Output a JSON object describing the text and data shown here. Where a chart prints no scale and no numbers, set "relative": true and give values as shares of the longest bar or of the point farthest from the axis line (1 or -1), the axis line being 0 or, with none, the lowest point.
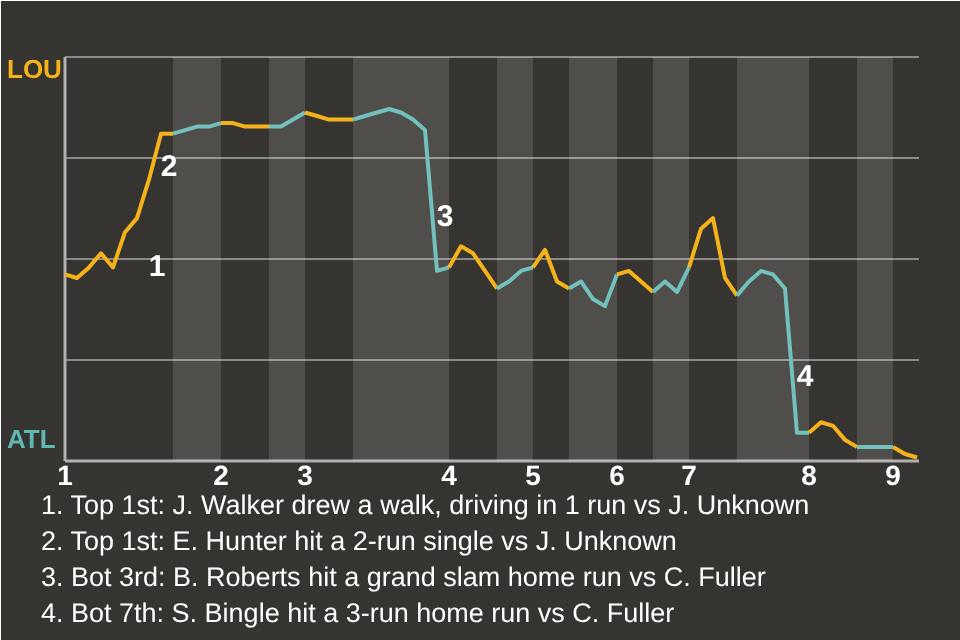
{
  "chart_data": {
    "type": "line",
    "relative": true,
    "grid": "y",
    "marker": "none",
    "line_style": "solid",
    "categories": [
      "1",
      null,
      null,
      null,
      null,
      null,
      null,
      null,
      null,
      null,
      null,
      null,
      null,
      "2",
      null,
      null,
      null,
      null,
      null,
      null,
      "3",
      null,
      null,
      null,
      null,
      null,
      null,
      null,
      null,
      null,
      null,
      null,
      "4",
      null,
      null,
      null,
      null,
      null,
      null,
      "5",
      null,
      null,
      null,
      null,
      null,
      null,
      "6",
      null,
      null,
      null,
      null,
      null,
      "7",
      null,
      null,
      null,
      null,
      null,
      null,
      null,
      null,
      null,
      "8",
      null,
      null,
      null,
      null,
      null,
      null,
      "9",
      null,
      null
    ],
    "series": [
      {
        "name": "LOU",
        "color": "#f5b21b",
        "values": [
          0.53,
          0.52,
          0.55,
          0.59,
          0.55,
          0.65,
          0.69,
          0.8,
          0.93,
          0.93,
          null,
          null,
          null,
          null,
          null,
          null,
          null,
          null,
          null,
          null,
          null,
          null,
          null,
          null,
          null,
          null,
          null,
          null,
          null,
          null,
          null,
          null,
          null,
          null,
          null,
          null,
          null,
          null,
          null,
          null,
          null,
          null,
          null,
          null,
          null,
          null,
          null,
          null,
          null,
          null,
          null,
          null,
          null,
          null,
          null,
          null,
          null,
          null,
          null,
          null,
          null,
          null,
          null,
          null,
          null,
          null,
          null,
          null,
          null,
          null,
          null,
          null
        ]
      },
      {
        "name": "ATL",
        "color": "#5fb8b4",
        "values": [
          null,
          null,
          null,
          null,
          null,
          null,
          null,
          null,
          null,
          0.93,
          0.94,
          0.95,
          0.95,
          0.96,
          null,
          null,
          null,
          null,
          null,
          null,
          null,
          null,
          null,
          null,
          null,
          null,
          null,
          null,
          null,
          null,
          null,
          null,
          null,
          null,
          null,
          null,
          null,
          null,
          null,
          null,
          null,
          null,
          null,
          null,
          null,
          null,
          null,
          null,
          null,
          null,
          null,
          null,
          null,
          null,
          null,
          null,
          null,
          null,
          null,
          null,
          null,
          null,
          null,
          null,
          null,
          null,
          null,
          null,
          null,
          null,
          null,
          null
        ]
      },
      {
        "color": "#f5b21b",
        "values": [
          null,
          null,
          null,
          null,
          null,
          null,
          null,
          null,
          null,
          null,
          null,
          null,
          null,
          0.96,
          0.96,
          0.95,
          0.95,
          0.95,
          null,
          null,
          null,
          null,
          null,
          null,
          null,
          null,
          null,
          null,
          null,
          null,
          null,
          null,
          null,
          null,
          null,
          null,
          null,
          null,
          null,
          null,
          null,
          null,
          null,
          null,
          null,
          null,
          null,
          null,
          null,
          null,
          null,
          null,
          null,
          null,
          null,
          null,
          null,
          null,
          null,
          null,
          null,
          null,
          null,
          null,
          null,
          null,
          null,
          null,
          null,
          null,
          null,
          null
        ]
      },
      {
        "color": "#5fb8b4",
        "values": [
          null,
          null,
          null,
          null,
          null,
          null,
          null,
          null,
          null,
          null,
          null,
          null,
          null,
          null,
          null,
          null,
          null,
          0.95,
          0.95,
          0.97,
          0.99,
          null,
          null,
          null,
          null,
          null,
          null,
          null,
          null,
          null,
          null,
          null,
          null,
          null,
          null,
          null,
          null,
          null,
          null,
          null,
          null,
          null,
          null,
          null,
          null,
          null,
          null,
          null,
          null,
          null,
          null,
          null,
          null,
          null,
          null,
          null,
          null,
          null,
          null,
          null,
          null,
          null,
          null,
          null,
          null,
          null,
          null,
          null,
          null,
          null,
          null,
          null
        ]
      },
      {
        "color": "#f5b21b",
        "values": [
          null,
          null,
          null,
          null,
          null,
          null,
          null,
          null,
          null,
          null,
          null,
          null,
          null,
          null,
          null,
          null,
          null,
          null,
          null,
          null,
          0.99,
          0.98,
          0.97,
          0.97,
          0.97,
          null,
          null,
          null,
          null,
          null,
          null,
          null,
          null,
          null,
          null,
          null,
          null,
          null,
          null,
          null,
          null,
          null,
          null,
          null,
          null,
          null,
          null,
          null,
          null,
          null,
          null,
          null,
          null,
          null,
          null,
          null,
          null,
          null,
          null,
          null,
          null,
          null,
          null,
          null,
          null,
          null,
          null,
          null,
          null,
          null,
          null,
          null
        ]
      },
      {
        "color": "#5fb8b4",
        "values": [
          null,
          null,
          null,
          null,
          null,
          null,
          null,
          null,
          null,
          null,
          null,
          null,
          null,
          null,
          null,
          null,
          null,
          null,
          null,
          null,
          null,
          null,
          null,
          null,
          0.97,
          0.98,
          0.99,
          1.0,
          0.99,
          0.97,
          0.94,
          0.54,
          0.55,
          null,
          null,
          null,
          null,
          null,
          null,
          null,
          null,
          null,
          null,
          null,
          null,
          null,
          null,
          null,
          null,
          null,
          null,
          null,
          null,
          null,
          null,
          null,
          null,
          null,
          null,
          null,
          null,
          null,
          null,
          null,
          null,
          null,
          null,
          null,
          null,
          null,
          null,
          null
        ]
      },
      {
        "color": "#f5b21b",
        "values": [
          null,
          null,
          null,
          null,
          null,
          null,
          null,
          null,
          null,
          null,
          null,
          null,
          null,
          null,
          null,
          null,
          null,
          null,
          null,
          null,
          null,
          null,
          null,
          null,
          null,
          null,
          null,
          null,
          null,
          null,
          null,
          null,
          0.55,
          0.61,
          0.59,
          0.54,
          0.49,
          null,
          null,
          null,
          null,
          null,
          null,
          null,
          null,
          null,
          null,
          null,
          null,
          null,
          null,
          null,
          null,
          null,
          null,
          null,
          null,
          null,
          null,
          null,
          null,
          null,
          null,
          null,
          null,
          null,
          null,
          null,
          null,
          null,
          null,
          null
        ]
      },
      {
        "color": "#5fb8b4",
        "values": [
          null,
          null,
          null,
          null,
          null,
          null,
          null,
          null,
          null,
          null,
          null,
          null,
          null,
          null,
          null,
          null,
          null,
          null,
          null,
          null,
          null,
          null,
          null,
          null,
          null,
          null,
          null,
          null,
          null,
          null,
          null,
          null,
          null,
          null,
          null,
          null,
          0.49,
          0.51,
          0.54,
          0.55,
          null,
          null,
          null,
          null,
          null,
          null,
          null,
          null,
          null,
          null,
          null,
          null,
          null,
          null,
          null,
          null,
          null,
          null,
          null,
          null,
          null,
          null,
          null,
          null,
          null,
          null,
          null,
          null,
          null,
          null,
          null,
          null
        ]
      },
      {
        "color": "#f5b21b",
        "values": [
          null,
          null,
          null,
          null,
          null,
          null,
          null,
          null,
          null,
          null,
          null,
          null,
          null,
          null,
          null,
          null,
          null,
          null,
          null,
          null,
          null,
          null,
          null,
          null,
          null,
          null,
          null,
          null,
          null,
          null,
          null,
          null,
          null,
          null,
          null,
          null,
          null,
          null,
          null,
          0.55,
          0.6,
          0.51,
          0.49,
          null,
          null,
          null,
          null,
          null,
          null,
          null,
          null,
          null,
          null,
          null,
          null,
          null,
          null,
          null,
          null,
          null,
          null,
          null,
          null,
          null,
          null,
          null,
          null,
          null,
          null,
          null,
          null,
          null
        ]
      },
      {
        "color": "#5fb8b4",
        "values": [
          null,
          null,
          null,
          null,
          null,
          null,
          null,
          null,
          null,
          null,
          null,
          null,
          null,
          null,
          null,
          null,
          null,
          null,
          null,
          null,
          null,
          null,
          null,
          null,
          null,
          null,
          null,
          null,
          null,
          null,
          null,
          null,
          null,
          null,
          null,
          null,
          null,
          null,
          null,
          null,
          null,
          null,
          0.49,
          0.51,
          0.46,
          0.44,
          0.53,
          null,
          null,
          null,
          null,
          null,
          null,
          null,
          null,
          null,
          null,
          null,
          null,
          null,
          null,
          null,
          null,
          null,
          null,
          null,
          null,
          null,
          null,
          null,
          null,
          null
        ]
      },
      {
        "color": "#f5b21b",
        "values": [
          null,
          null,
          null,
          null,
          null,
          null,
          null,
          null,
          null,
          null,
          null,
          null,
          null,
          null,
          null,
          null,
          null,
          null,
          null,
          null,
          null,
          null,
          null,
          null,
          null,
          null,
          null,
          null,
          null,
          null,
          null,
          null,
          null,
          null,
          null,
          null,
          null,
          null,
          null,
          null,
          null,
          null,
          null,
          null,
          null,
          null,
          0.53,
          0.54,
          0.51,
          0.48,
          null,
          null,
          null,
          null,
          null,
          null,
          null,
          null,
          null,
          null,
          null,
          null,
          null,
          null,
          null,
          null,
          null,
          null,
          null,
          null,
          null,
          null
        ]
      },
      {
        "color": "#5fb8b4",
        "values": [
          null,
          null,
          null,
          null,
          null,
          null,
          null,
          null,
          null,
          null,
          null,
          null,
          null,
          null,
          null,
          null,
          null,
          null,
          null,
          null,
          null,
          null,
          null,
          null,
          null,
          null,
          null,
          null,
          null,
          null,
          null,
          null,
          null,
          null,
          null,
          null,
          null,
          null,
          null,
          null,
          null,
          null,
          null,
          null,
          null,
          null,
          null,
          null,
          null,
          0.48,
          0.51,
          0.48,
          0.55,
          null,
          null,
          null,
          null,
          null,
          null,
          null,
          null,
          null,
          null,
          null,
          null,
          null,
          null,
          null,
          null,
          null,
          null,
          null
        ]
      },
      {
        "color": "#f5b21b",
        "values": [
          null,
          null,
          null,
          null,
          null,
          null,
          null,
          null,
          null,
          null,
          null,
          null,
          null,
          null,
          null,
          null,
          null,
          null,
          null,
          null,
          null,
          null,
          null,
          null,
          null,
          null,
          null,
          null,
          null,
          null,
          null,
          null,
          null,
          null,
          null,
          null,
          null,
          null,
          null,
          null,
          null,
          null,
          null,
          null,
          null,
          null,
          null,
          null,
          null,
          null,
          null,
          null,
          0.55,
          0.66,
          0.69,
          0.52,
          0.47,
          null,
          null,
          null,
          null,
          null,
          null,
          null,
          null,
          null,
          null,
          null,
          null,
          null,
          null,
          null
        ]
      },
      {
        "color": "#5fb8b4",
        "values": [
          null,
          null,
          null,
          null,
          null,
          null,
          null,
          null,
          null,
          null,
          null,
          null,
          null,
          null,
          null,
          null,
          null,
          null,
          null,
          null,
          null,
          null,
          null,
          null,
          null,
          null,
          null,
          null,
          null,
          null,
          null,
          null,
          null,
          null,
          null,
          null,
          null,
          null,
          null,
          null,
          null,
          null,
          null,
          null,
          null,
          null,
          null,
          null,
          null,
          null,
          null,
          null,
          null,
          null,
          null,
          null,
          0.47,
          0.51,
          0.54,
          0.53,
          0.49,
          0.08,
          0.08,
          null,
          null,
          null,
          null,
          null,
          null,
          null,
          null,
          null
        ]
      },
      {
        "color": "#f5b21b",
        "values": [
          null,
          null,
          null,
          null,
          null,
          null,
          null,
          null,
          null,
          null,
          null,
          null,
          null,
          null,
          null,
          null,
          null,
          null,
          null,
          null,
          null,
          null,
          null,
          null,
          null,
          null,
          null,
          null,
          null,
          null,
          null,
          null,
          null,
          null,
          null,
          null,
          null,
          null,
          null,
          null,
          null,
          null,
          null,
          null,
          null,
          null,
          null,
          null,
          null,
          null,
          null,
          null,
          null,
          null,
          null,
          null,
          null,
          null,
          null,
          null,
          null,
          null,
          0.08,
          0.11,
          0.1,
          0.06,
          0.04,
          null,
          null,
          null,
          null,
          null
        ]
      },
      {
        "color": "#5fb8b4",
        "values": [
          null,
          null,
          null,
          null,
          null,
          null,
          null,
          null,
          null,
          null,
          null,
          null,
          null,
          null,
          null,
          null,
          null,
          null,
          null,
          null,
          null,
          null,
          null,
          null,
          null,
          null,
          null,
          null,
          null,
          null,
          null,
          null,
          null,
          null,
          null,
          null,
          null,
          null,
          null,
          null,
          null,
          null,
          null,
          null,
          null,
          null,
          null,
          null,
          null,
          null,
          null,
          null,
          null,
          null,
          null,
          null,
          null,
          null,
          null,
          null,
          null,
          null,
          null,
          null,
          null,
          null,
          0.04,
          0.04,
          0.04,
          0.04,
          null,
          null
        ]
      },
      {
        "color": "#f5b21b",
        "values": [
          null,
          null,
          null,
          null,
          null,
          null,
          null,
          null,
          null,
          null,
          null,
          null,
          null,
          null,
          null,
          null,
          null,
          null,
          null,
          null,
          null,
          null,
          null,
          null,
          null,
          null,
          null,
          null,
          null,
          null,
          null,
          null,
          null,
          null,
          null,
          null,
          null,
          null,
          null,
          null,
          null,
          null,
          null,
          null,
          null,
          null,
          null,
          null,
          null,
          null,
          null,
          null,
          null,
          null,
          null,
          null,
          null,
          null,
          null,
          null,
          null,
          null,
          null,
          null,
          null,
          null,
          null,
          null,
          null,
          0.04,
          0.02,
          0.01
        ]
      }
    ],
    "annotations": [
      "1",
      "2",
      "3",
      "4",
      "1. Top 1st: J. Walker drew a walk, driving in 1 run vs J. Unknown",
      "2. Top 1st: E. Hunter hit a 2-run single vs J. Unknown",
      "3. Bot 3rd: B. Roberts hit a grand slam home run vs C. Fuller",
      "4. Bot 7th: S. Bingle hit a 3-run home run vs C. Fuller"
    ]
  }
}
